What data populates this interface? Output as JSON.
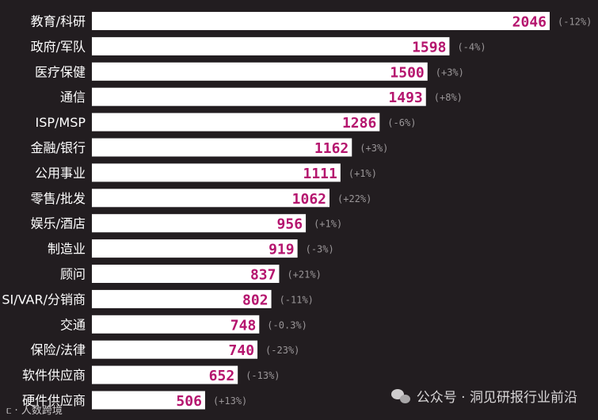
{
  "chart_data": {
    "type": "bar",
    "orientation": "horizontal",
    "title": "",
    "xlabel": "",
    "ylabel": "",
    "xlim": [
      0,
      2046
    ],
    "grid": false,
    "legend": "none",
    "categories": [
      "教育/科研",
      "政府/军队",
      "医疗保健",
      "通信",
      "ISP/MSP",
      "金融/银行",
      "公用事业",
      "零售/批发",
      "娱乐/酒店",
      "制造业",
      "顾问",
      "SI/VAR/分销商",
      "交通",
      "保险/法律",
      "软件供应商",
      "硬件供应商"
    ],
    "values": [
      2046,
      1598,
      1500,
      1493,
      1286,
      1162,
      1111,
      1062,
      956,
      919,
      837,
      802,
      748,
      740,
      652,
      506
    ],
    "changes": [
      "(-12%)",
      "(-4%)",
      "(+3%)",
      "(+8%)",
      "(-6%)",
      "(+3%)",
      "(+1%)",
      "(+22%)",
      "(+1%)",
      "(-3%)",
      "(+21%)",
      "(-11%)",
      "(-0.3%)",
      "(-23%)",
      "(-13%)",
      "(+13%)"
    ],
    "colors": {
      "background": "#221d20",
      "bar": "#ffffff",
      "value_text": "#b5156e",
      "change_text": "#9a9698"
    }
  },
  "watermarks": {
    "right": "公众号 · 洞见研报行业前沿",
    "left": "人数跨境",
    "right_icon": "wechat-icon",
    "left_icon": "logo-icon"
  }
}
